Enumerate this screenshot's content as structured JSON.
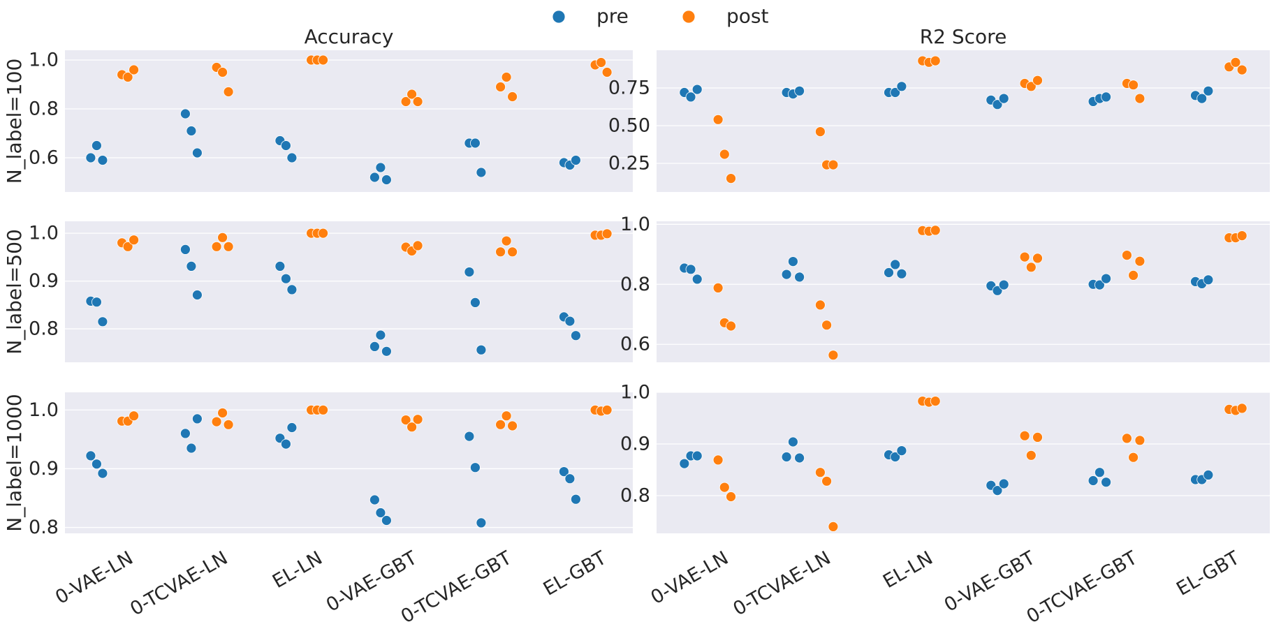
{
  "legend": {
    "items": [
      {
        "label": "pre",
        "color": "#1f77b4"
      },
      {
        "label": "post",
        "color": "#ff7f0e"
      }
    ],
    "placement": "top-center"
  },
  "columns": [
    "Accuracy",
    "R2 Score"
  ],
  "rows": [
    "N_label=100",
    "N_label=500",
    "N_label=1000"
  ],
  "chart_data": [
    {
      "type": "scatter",
      "title": "Accuracy",
      "ylabel": "N_label=100",
      "categories": [
        "0-VAE-LN",
        "0-TCVAE-LN",
        "EL-LN",
        "0-VAE-GBT",
        "0-TCVAE-GBT",
        "EL-GBT"
      ],
      "ylim": [
        0.46,
        1.04
      ],
      "yticks": [
        0.6,
        0.8,
        1.0
      ],
      "ytick_labels": [
        "0.6",
        "0.8",
        "1.0"
      ],
      "grid": true,
      "series": [
        {
          "name": "pre",
          "color": "#1f77b4",
          "values": [
            [
              0.6,
              0.65,
              0.59
            ],
            [
              0.78,
              0.71,
              0.62
            ],
            [
              0.67,
              0.65,
              0.6
            ],
            [
              0.52,
              0.56,
              0.51
            ],
            [
              0.66,
              0.66,
              0.54
            ],
            [
              0.58,
              0.57,
              0.59
            ]
          ]
        },
        {
          "name": "post",
          "color": "#ff7f0e",
          "values": [
            [
              0.94,
              0.93,
              0.96
            ],
            [
              0.97,
              0.95,
              0.87
            ],
            [
              1.0,
              1.0,
              1.0
            ],
            [
              0.83,
              0.86,
              0.83
            ],
            [
              0.89,
              0.93,
              0.85
            ],
            [
              0.98,
              0.99,
              0.95
            ]
          ]
        }
      ]
    },
    {
      "type": "scatter",
      "title": "R2 Score",
      "ylabel": "",
      "categories": [
        "0-VAE-LN",
        "0-TCVAE-LN",
        "EL-LN",
        "0-VAE-GBT",
        "0-TCVAE-GBT",
        "EL-GBT"
      ],
      "ylim": [
        0.06,
        1.0
      ],
      "yticks": [
        0.25,
        0.5,
        0.75
      ],
      "ytick_labels": [
        "0.25",
        "0.50",
        "0.75"
      ],
      "grid": true,
      "series": [
        {
          "name": "pre",
          "color": "#1f77b4",
          "values": [
            [
              0.72,
              0.69,
              0.74
            ],
            [
              0.72,
              0.71,
              0.73
            ],
            [
              0.72,
              0.72,
              0.76
            ],
            [
              0.67,
              0.64,
              0.68
            ],
            [
              0.66,
              0.68,
              0.69
            ],
            [
              0.7,
              0.68,
              0.73
            ]
          ]
        },
        {
          "name": "post",
          "color": "#ff7f0e",
          "values": [
            [
              0.54,
              0.31,
              0.15
            ],
            [
              0.46,
              0.24,
              0.24
            ],
            [
              0.93,
              0.92,
              0.93
            ],
            [
              0.78,
              0.76,
              0.8
            ],
            [
              0.78,
              0.77,
              0.68
            ],
            [
              0.89,
              0.92,
              0.87
            ]
          ]
        }
      ]
    },
    {
      "type": "scatter",
      "title": "",
      "ylabel": "N_label=500",
      "categories": [
        "0-VAE-LN",
        "0-TCVAE-LN",
        "EL-LN",
        "0-VAE-GBT",
        "0-TCVAE-GBT",
        "EL-GBT"
      ],
      "ylim": [
        0.73,
        1.025
      ],
      "yticks": [
        0.8,
        0.9,
        1.0
      ],
      "ytick_labels": [
        "0.8",
        "0.9",
        "1.0"
      ],
      "grid": true,
      "series": [
        {
          "name": "pre",
          "color": "#1f77b4",
          "values": [
            [
              0.858,
              0.856,
              0.815
            ],
            [
              0.966,
              0.931,
              0.871
            ],
            [
              0.931,
              0.905,
              0.882
            ],
            [
              0.763,
              0.787,
              0.753
            ],
            [
              0.919,
              0.855,
              0.756
            ],
            [
              0.825,
              0.816,
              0.786
            ]
          ]
        },
        {
          "name": "post",
          "color": "#ff7f0e",
          "values": [
            [
              0.98,
              0.972,
              0.986
            ],
            [
              0.972,
              0.991,
              0.972
            ],
            [
              1.0,
              1.0,
              1.0
            ],
            [
              0.971,
              0.963,
              0.974
            ],
            [
              0.961,
              0.984,
              0.961
            ],
            [
              0.996,
              0.996,
              0.999
            ]
          ]
        }
      ]
    },
    {
      "type": "scatter",
      "title": "",
      "ylabel": "",
      "categories": [
        "0-VAE-LN",
        "0-TCVAE-LN",
        "EL-LN",
        "0-VAE-GBT",
        "0-TCVAE-GBT",
        "EL-GBT"
      ],
      "ylim": [
        0.54,
        1.01
      ],
      "yticks": [
        0.6,
        0.8,
        1.0
      ],
      "ytick_labels": [
        "0.6",
        "0.8",
        "1.0"
      ],
      "grid": true,
      "series": [
        {
          "name": "pre",
          "color": "#1f77b4",
          "values": [
            [
              0.854,
              0.85,
              0.817
            ],
            [
              0.833,
              0.876,
              0.824
            ],
            [
              0.839,
              0.866,
              0.835
            ],
            [
              0.795,
              0.779,
              0.798
            ],
            [
              0.8,
              0.798,
              0.819
            ],
            [
              0.809,
              0.802,
              0.815
            ]
          ]
        },
        {
          "name": "post",
          "color": "#ff7f0e",
          "values": [
            [
              0.788,
              0.672,
              0.661
            ],
            [
              0.731,
              0.664,
              0.564
            ],
            [
              0.979,
              0.977,
              0.98
            ],
            [
              0.891,
              0.857,
              0.887
            ],
            [
              0.897,
              0.83,
              0.877
            ],
            [
              0.955,
              0.955,
              0.962
            ]
          ]
        }
      ]
    },
    {
      "type": "scatter",
      "title": "",
      "ylabel": "N_label=1000",
      "categories": [
        "0-VAE-LN",
        "0-TCVAE-LN",
        "EL-LN",
        "0-VAE-GBT",
        "0-TCVAE-GBT",
        "EL-GBT"
      ],
      "ylim": [
        0.79,
        1.03
      ],
      "yticks": [
        0.8,
        0.9,
        1.0
      ],
      "ytick_labels": [
        "0.8",
        "0.9",
        "1.0"
      ],
      "grid": true,
      "series": [
        {
          "name": "pre",
          "color": "#1f77b4",
          "values": [
            [
              0.922,
              0.908,
              0.892
            ],
            [
              0.96,
              0.935,
              0.985
            ],
            [
              0.952,
              0.942,
              0.97
            ],
            [
              0.847,
              0.825,
              0.812
            ],
            [
              0.955,
              0.902,
              0.808
            ],
            [
              0.895,
              0.883,
              0.848
            ]
          ]
        },
        {
          "name": "post",
          "color": "#ff7f0e",
          "values": [
            [
              0.981,
              0.981,
              0.99
            ],
            [
              0.98,
              0.995,
              0.975
            ],
            [
              1.0,
              1.0,
              1.0
            ],
            [
              0.983,
              0.971,
              0.984
            ],
            [
              0.975,
              0.99,
              0.973
            ],
            [
              1.0,
              0.998,
              1.0
            ]
          ]
        }
      ]
    },
    {
      "type": "scatter",
      "title": "",
      "ylabel": "",
      "categories": [
        "0-VAE-LN",
        "0-TCVAE-LN",
        "EL-LN",
        "0-VAE-GBT",
        "0-TCVAE-GBT",
        "EL-GBT"
      ],
      "ylim": [
        0.727,
        1.0
      ],
      "yticks": [
        0.8,
        0.9,
        1.0
      ],
      "ytick_labels": [
        "0.8",
        "0.9",
        "1.0"
      ],
      "grid": true,
      "series": [
        {
          "name": "pre",
          "color": "#1f77b4",
          "values": [
            [
              0.862,
              0.877,
              0.877
            ],
            [
              0.875,
              0.904,
              0.873
            ],
            [
              0.879,
              0.875,
              0.887
            ],
            [
              0.82,
              0.81,
              0.823
            ],
            [
              0.829,
              0.845,
              0.826
            ],
            [
              0.831,
              0.831,
              0.84
            ]
          ]
        },
        {
          "name": "post",
          "color": "#ff7f0e",
          "values": [
            [
              0.869,
              0.816,
              0.798
            ],
            [
              0.845,
              0.828,
              0.74
            ],
            [
              0.983,
              0.981,
              0.983
            ],
            [
              0.916,
              0.878,
              0.913
            ],
            [
              0.911,
              0.874,
              0.907
            ],
            [
              0.967,
              0.965,
              0.969
            ]
          ]
        }
      ]
    }
  ]
}
